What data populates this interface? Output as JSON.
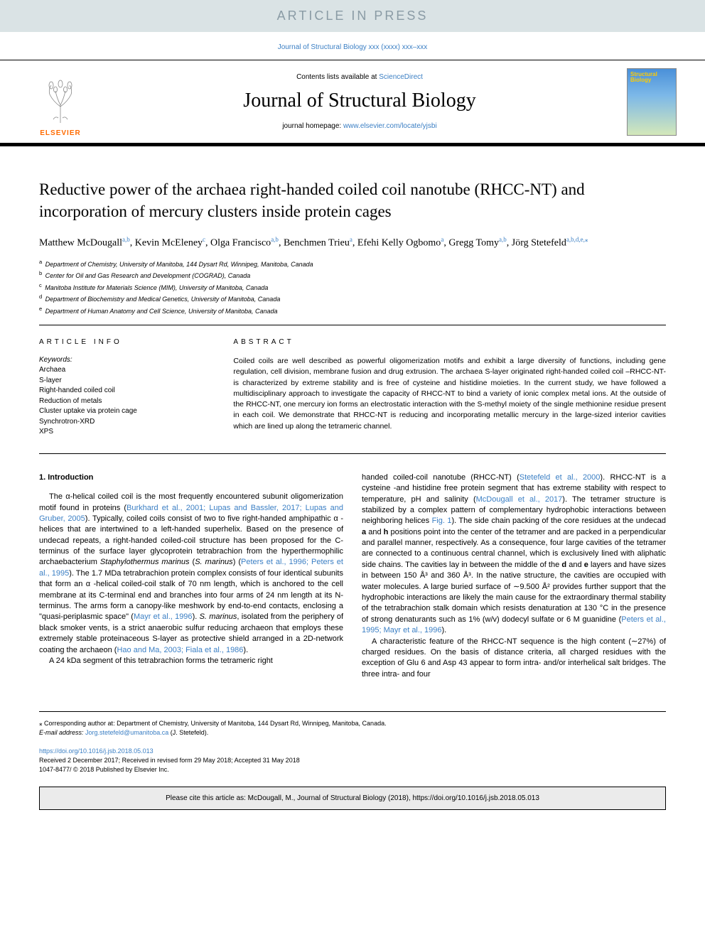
{
  "banner": {
    "text": "ARTICLE IN PRESS"
  },
  "journal_ref": "Journal of Structural Biology xxx (xxxx) xxx–xxx",
  "header": {
    "elsevier_label": "ELSEVIER",
    "contents_prefix": "Contents lists available at ",
    "contents_link": "ScienceDirect",
    "journal_title": "Journal of Structural Biology",
    "homepage_prefix": "journal homepage: ",
    "homepage_url": "www.elsevier.com/locate/yjsbi",
    "cover_title": "Structural Biology"
  },
  "article": {
    "title": "Reductive power of the archaea right-handed coiled coil nanotube (RHCC-NT) and incorporation of mercury clusters inside protein cages",
    "authors_html": "Matthew McDougall<sup>a,b</sup>, Kevin McEleney<sup>c</sup>, Olga Francisco<sup>a,b</sup>, Benchmen Trieu<sup>a</sup>, Efehi Kelly Ogbomo<sup>a</sup>, Gregg Tomy<sup>a,b</sup>, Jörg Stetefeld<sup>a,b,d,e,</sup><sup>⁎</sup>"
  },
  "affiliations": [
    {
      "sup": "a",
      "text": "Department of Chemistry, University of Manitoba, 144 Dysart Rd, Winnipeg, Manitoba, Canada"
    },
    {
      "sup": "b",
      "text": "Center for Oil and Gas Research and Development (COGRAD), Canada"
    },
    {
      "sup": "c",
      "text": "Manitoba Institute for Materials Science (MIM), University of Manitoba, Canada"
    },
    {
      "sup": "d",
      "text": "Department of Biochemistry and Medical Genetics, University of Manitoba, Canada"
    },
    {
      "sup": "e",
      "text": "Department of Human Anatomy and Cell Science, University of Manitoba, Canada"
    }
  ],
  "article_info": {
    "heading": "ARTICLE INFO",
    "keywords_label": "Keywords:",
    "keywords": [
      "Archaea",
      "S-layer",
      "Right-handed coiled coil",
      "Reduction of metals",
      "Cluster uptake via protein cage",
      "Synchrotron-XRD",
      "XPS"
    ]
  },
  "abstract": {
    "heading": "ABSTRACT",
    "text": "Coiled coils are well described as powerful oligomerization motifs and exhibit a large diversity of functions, including gene regulation, cell division, membrane fusion and drug extrusion. The archaea S-layer originated right-handed coiled coil –RHCC-NT- is characterized by extreme stability and is free of cysteine and histidine moieties. In the current study, we have followed a multidisciplinary approach to investigate the capacity of RHCC-NT to bind a variety of ionic complex metal ions. At the outside of the RHCC-NT, one mercury ion forms an electrostatic interaction with the S-methyl moiety of the single methionine residue present in each coil. We demonstrate that RHCC-NT is reducing and incorporating metallic mercury in the large-sized interior cavities which are lined up along the tetrameric channel."
  },
  "body": {
    "intro_heading": "1. Introduction",
    "col1_p1": "The α-helical coiled coil is the most frequently encountered subunit oligomerization motif found in proteins (<span class='ref-link'>Burkhard et al., 2001; Lupas and Bassler, 2017; Lupas and Gruber, 2005</span>). Typically, coiled coils consist of two to five right-handed amphipathic α -helices that are intertwined to a left-handed superhelix. Based on the presence of undecad repeats, a right-handed coiled-coil structure has been proposed for the C-terminus of the surface layer glycoprotein tetrabrachion from the hyperthermophilic archaebacterium <i>Staphylothermus marinus</i> (<i>S. marinus</i>) (<span class='ref-link'>Peters et al., 1996; Peters et al., 1995</span>). The 1.7 MDa tetrabrachion protein complex consists of four identical subunits that form an α -helical coiled-coil stalk of 70 nm length, which is anchored to the cell membrane at its C-terminal end and branches into four arms of 24 nm length at its N-terminus. The arms form a canopy-like meshwork by end-to-end contacts, enclosing a \"quasi-periplasmic space\" (<span class='ref-link'>Mayr et al., 1996</span>). <i>S. marinus</i>, isolated from the periphery of black smoker vents, is a strict anaerobic sulfur reducing archaeon that employs these extremely stable proteinaceous S-layer as protective shield arranged in a 2D-network coating the archaeon (<span class='ref-link'>Hao and Ma, 2003; Fiala et al., 1986</span>).",
    "col1_p2": "A 24 kDa segment of this tetrabrachion forms the tetrameric right",
    "col2_p1": "handed coiled-coil nanotube (RHCC-NT) (<span class='ref-link'>Stetefeld et al., 2000</span>). RHCC-NT is a cysteine -and histidine free protein segment that has extreme stability with respect to temperature, pH and salinity (<span class='ref-link'>McDougall et al., 2017</span>). The tetramer structure is stabilized by a complex pattern of complementary hydrophobic interactions between neighboring helices <span class='ref-link'>Fig. 1</span>). The side chain packing of the core residues at the undecad <b>a</b> and <b>h</b> positions point into the center of the tetramer and are packed in a perpendicular and parallel manner, respectively. As a consequence, four large cavities of the tetramer are connected to a continuous central channel, which is exclusively lined with aliphatic side chains. The cavities lay in between the middle of the <b>d</b> and <b>e</b> layers and have sizes in between 150 Å³ and 360 Å³. In the native structure, the cavities are occupied with water molecules. A large buried surface of ∼9.500 Å² provides further support that the hydrophobic interactions are likely the main cause for the extraordinary thermal stability of the tetrabrachion stalk domain which resists denaturation at 130 °C in the presence of strong denaturants such as 1% (w/v) dodecyl sulfate or 6 M guanidine (<span class='ref-link'>Peters et al., 1995; Mayr et al., 1996</span>).",
    "col2_p2": "A characteristic feature of the RHCC-NT sequence is the high content (∼27%) of charged residues. On the basis of distance criteria, all charged residues with the exception of Glu 6 and Asp 43 appear to form intra- and/or interhelical salt bridges. The three intra- and four"
  },
  "footer": {
    "corr_prefix": "⁎ Corresponding author at: ",
    "corr_text": "Department of Chemistry, University of Manitoba, 144 Dysart Rd, Winnipeg, Manitoba, Canada.",
    "email_label": "E-mail address: ",
    "email": "Jorg.stetefeld@umanitoba.ca",
    "email_suffix": " (J. Stetefeld)."
  },
  "doi": {
    "url": "https://doi.org/10.1016/j.jsb.2018.05.013",
    "received": "Received 2 December 2017; Received in revised form 29 May 2018; Accepted 31 May 2018",
    "copyright": "1047-8477/ © 2018 Published by Elsevier Inc."
  },
  "cite_box": "Please cite this article as: McDougall, M., Journal of Structural Biology (2018), https://doi.org/10.1016/j.jsb.2018.05.013",
  "colors": {
    "banner_bg": "#dae3e5",
    "banner_fg": "#8a9ba5",
    "link": "#3b7fc4",
    "elsevier_orange": "#ff6b00",
    "cite_bg": "#ebebeb"
  },
  "typography": {
    "title_fontsize": 23,
    "journal_title_fontsize": 28,
    "body_fontsize": 11,
    "abstract_fontsize": 10.5,
    "affil_fontsize": 9
  }
}
